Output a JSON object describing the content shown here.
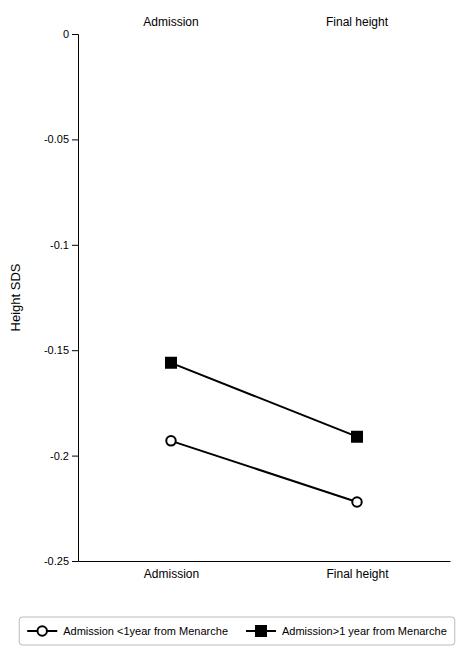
{
  "chart_data": {
    "type": "line",
    "categories": [
      "Admission",
      "Final height"
    ],
    "y_label": "Height SDS",
    "series": [
      {
        "name": "Admission <1year from Menarche",
        "color": "#000000",
        "marker": "open-circle",
        "values": [
          -0.193,
          -0.222
        ]
      },
      {
        "name": "Admission>1 year from Menarche",
        "color": "#000000",
        "marker": "square",
        "values": [
          -0.156,
          -0.191
        ]
      }
    ],
    "ylim": [
      -0.25,
      0.0
    ],
    "yticks": [
      0,
      -0.05,
      -0.1,
      -0.15,
      -0.2,
      -0.25
    ],
    "grid": false,
    "legend": "bottom"
  }
}
